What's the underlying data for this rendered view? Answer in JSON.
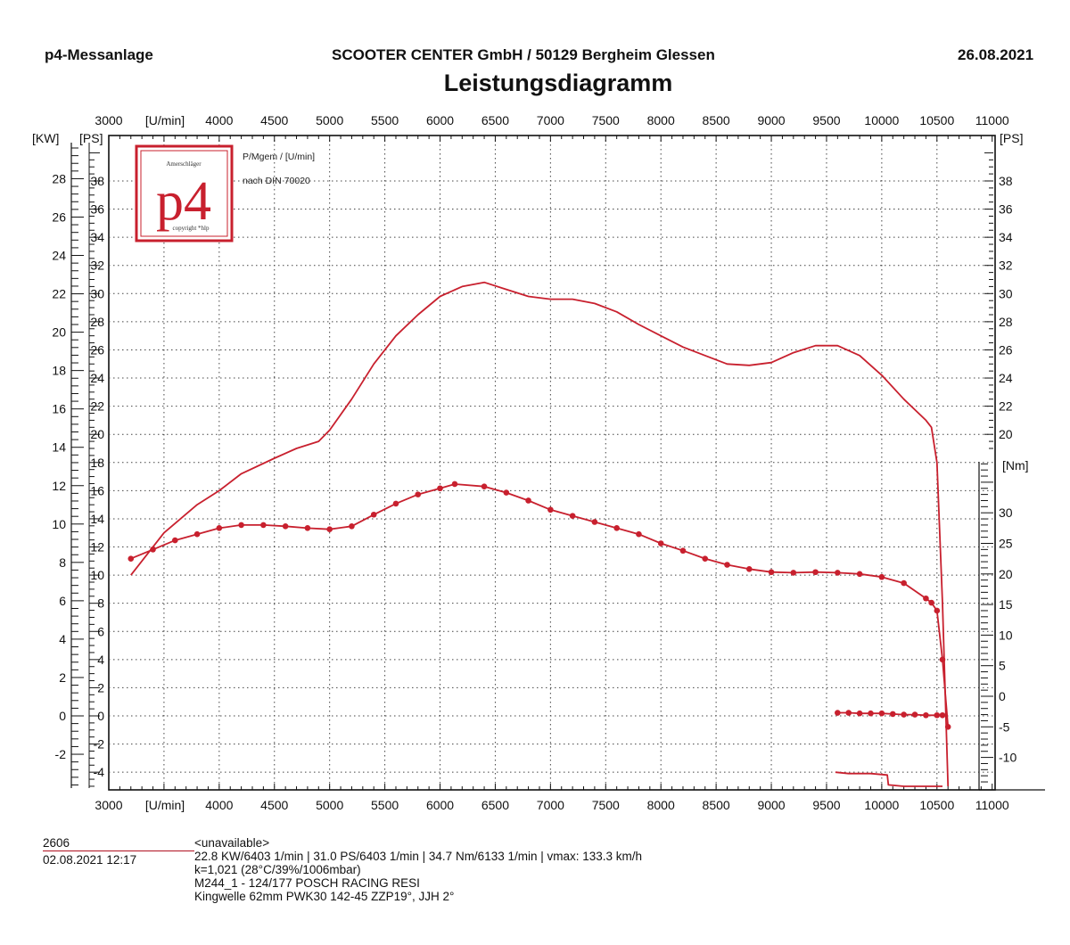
{
  "header": {
    "left": "p4-Messanlage",
    "center": "SCOOTER CENTER GmbH / 50129 Bergheim Glessen",
    "right": "26.08.2021",
    "title": "Leistungsdiagramm"
  },
  "logo": {
    "text": "p4",
    "top_small": "Amerschläger",
    "bottom_small": "copyright *hlp"
  },
  "annotations": [
    "P/Mgem / [U/min]",
    "nach DIN 70020"
  ],
  "colors": {
    "curve": "#c8202e",
    "grid": "#444444",
    "axis": "#111111"
  },
  "footer": {
    "id": "2606",
    "datetime": "02.08.2021  12:17",
    "lines": [
      "<unavailable>",
      "22.8 KW/6403 1/min  |  31.0 PS/6403 1/min  |  34.7 Nm/6133 1/min | vmax: 133.3 km/h",
      "k=1,021 (28°C/39%/1006mbar)",
      "M244_1 - 124/177 POSCH RACING RESI",
      "Kingwelle 62mm PWK30 142-45 ZZP19°, JJH 2°"
    ]
  },
  "chart_data": {
    "type": "line",
    "x_axis": {
      "label": "[U/min]",
      "ticks": [
        3000,
        4000,
        4500,
        5000,
        5500,
        6000,
        6500,
        7000,
        7500,
        8000,
        8500,
        9000,
        9500,
        10000,
        10500,
        11000
      ],
      "range": [
        3000,
        11000
      ],
      "position": "top and bottom"
    },
    "kw_axis": {
      "label": "[KW]",
      "ticks": [
        -2,
        0,
        2,
        4,
        6,
        8,
        10,
        12,
        14,
        16,
        18,
        20,
        22,
        24,
        26,
        28
      ],
      "position": "outer left"
    },
    "ps_axis": {
      "label": "[PS]",
      "ticks": [
        -4,
        -2,
        0,
        2,
        4,
        6,
        8,
        10,
        12,
        14,
        16,
        18,
        20,
        22,
        24,
        26,
        28,
        30,
        32,
        34,
        36,
        38
      ],
      "range": [
        -5,
        40
      ],
      "position": "inner left and right"
    },
    "nm_axis": {
      "label": "[Nm]",
      "ticks": [
        -10,
        -5,
        0,
        5,
        10,
        15,
        20,
        25,
        30
      ],
      "position": "right, lower part"
    },
    "grid": true,
    "series": [
      {
        "unit": "PS",
        "marker": "none",
        "x": [
          3200,
          3500,
          3800,
          4000,
          4200,
          4500,
          4700,
          4900,
          5000,
          5200,
          5400,
          5600,
          5800,
          6000,
          6200,
          6400,
          6600,
          6800,
          7000,
          7200,
          7400,
          7600,
          7800,
          8000,
          8200,
          8400,
          8600,
          8800,
          9000,
          9200,
          9400,
          9600,
          9800,
          10000,
          10200,
          10400,
          10450,
          10500,
          10550,
          10600
        ],
        "y": [
          10.0,
          13.0,
          15.0,
          16.0,
          17.2,
          18.3,
          19.0,
          19.5,
          20.3,
          22.5,
          25.0,
          27.0,
          28.5,
          29.8,
          30.5,
          30.8,
          30.3,
          29.8,
          29.6,
          29.6,
          29.3,
          28.7,
          27.8,
          27.0,
          26.2,
          25.6,
          25.0,
          24.9,
          25.1,
          25.8,
          26.3,
          26.3,
          25.6,
          24.2,
          22.5,
          21.0,
          20.5,
          18.0,
          8.0,
          -5.0
        ]
      },
      {
        "unit": "Nm",
        "marker": "dots",
        "x": [
          3200,
          3400,
          3600,
          3800,
          4000,
          4200,
          4400,
          4600,
          4800,
          5000,
          5200,
          5400,
          5600,
          5800,
          6000,
          6133,
          6400,
          6600,
          6800,
          7000,
          7200,
          7400,
          7600,
          7800,
          8000,
          8200,
          8400,
          8600,
          8800,
          9000,
          9200,
          9400,
          9600,
          9800,
          10000,
          10200,
          10400,
          10450,
          10500,
          10550,
          10600
        ],
        "y": [
          22.5,
          24.0,
          25.5,
          26.5,
          27.5,
          28.0,
          28.0,
          27.8,
          27.5,
          27.3,
          27.8,
          29.7,
          31.5,
          33.0,
          34.0,
          34.7,
          34.3,
          33.3,
          32.0,
          30.5,
          29.5,
          28.5,
          27.5,
          26.5,
          25.0,
          23.8,
          22.5,
          21.5,
          20.8,
          20.3,
          20.2,
          20.3,
          20.2,
          20.0,
          19.5,
          18.5,
          16.0,
          15.3,
          14.0,
          6.0,
          -5.0
        ]
      },
      {
        "unit": "Nm",
        "marker": "dots",
        "x": [
          9600,
          9700,
          9800,
          9900,
          10000,
          10100,
          10200,
          10300,
          10400,
          10500,
          10550
        ],
        "y": [
          -2.7,
          -2.7,
          -2.8,
          -2.8,
          -2.8,
          -2.9,
          -3.0,
          -3.0,
          -3.1,
          -3.1,
          -3.1
        ]
      },
      {
        "unit": "PS",
        "marker": "none",
        "x": [
          9580,
          9700,
          9900,
          10050,
          10060,
          10200,
          10350,
          10500,
          10550
        ],
        "y": [
          -4.0,
          -4.1,
          -4.1,
          -4.2,
          -4.9,
          -5.0,
          -5.0,
          -5.0,
          -5.0
        ]
      }
    ]
  }
}
